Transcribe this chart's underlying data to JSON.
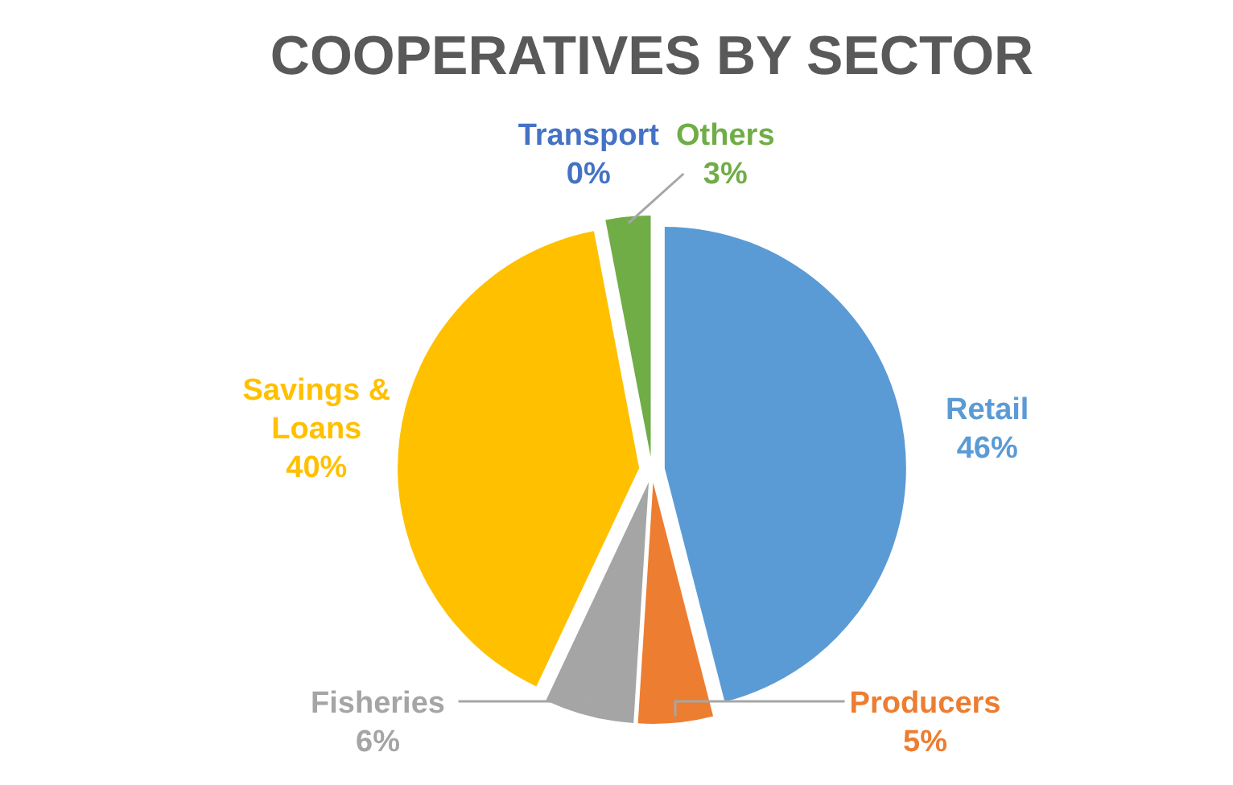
{
  "chart_data": {
    "type": "pie",
    "title": "COOPERATIVES BY SECTOR",
    "categories": [
      "Retail",
      "Producers",
      "Fisheries",
      "Savings & Loans",
      "Transport",
      "Others"
    ],
    "values": [
      46,
      5,
      6,
      40,
      0,
      3
    ],
    "value_labels": [
      "46%",
      "5%",
      "6%",
      "40%",
      "0%",
      "3%"
    ],
    "colors": [
      "#5b9bd5",
      "#ed7d31",
      "#a5a5a5",
      "#ffc000",
      "#4472c4",
      "#70ad47"
    ]
  }
}
